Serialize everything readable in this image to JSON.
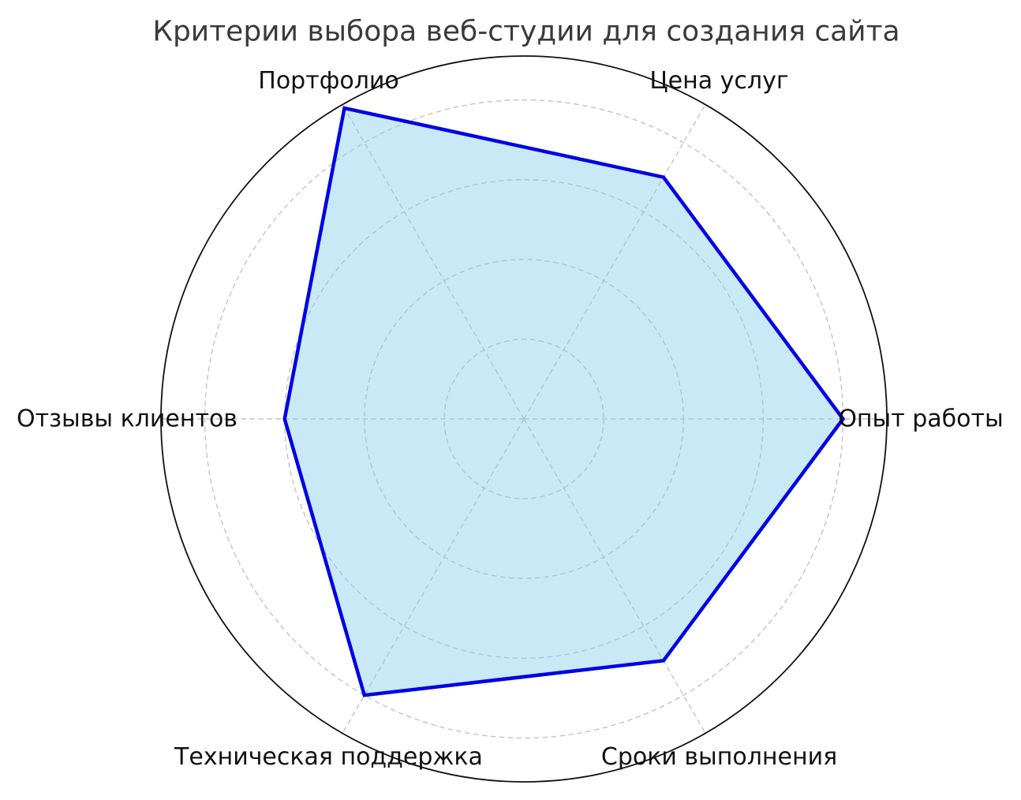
{
  "page": {
    "background": "#ffffff"
  },
  "chart_data": {
    "type": "radar",
    "title": "Критерии выбора веб-студии для создания сайта",
    "categories": [
      "Опыт работы",
      "Цена услуг",
      "Портфолио",
      "Отзывы клиентов",
      "Техническая поддержка",
      "Сроки выполнения"
    ],
    "series": [
      {
        "values": [
          8,
          7,
          9,
          6,
          8,
          7
        ]
      }
    ],
    "r_axis": {
      "min": 0,
      "max": 9.1,
      "gridline_values": [
        2,
        4,
        6,
        8
      ],
      "tick_labels_visible": false
    },
    "angle_start_deg": 0,
    "angle_direction": "counterclockwise",
    "legend": "none",
    "grid_style": "dashed",
    "colors": {
      "line": "#0000e6",
      "fill": "rgba(135,206,235,0.45)",
      "grid": "#c6c2bf",
      "outer_circle": "#111111",
      "title_text": "#3a3a3a",
      "label_text": "#111111"
    }
  }
}
